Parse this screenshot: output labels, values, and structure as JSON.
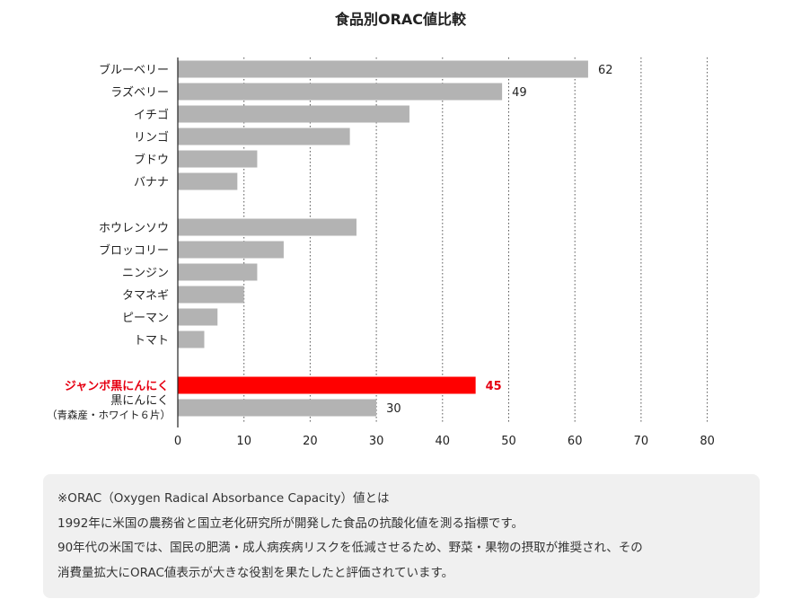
{
  "chart_data": {
    "type": "bar",
    "orientation": "horizontal",
    "title": "食品別ORAC値比較",
    "categories": [
      "ブルーベリー",
      "ラズベリー",
      "イチゴ",
      "リンゴ",
      "ブドウ",
      "バナナ",
      "ホウレンソウ",
      "ブロッコリー",
      "ニンジン",
      "タマネギ",
      "ピーマン",
      "トマト",
      "ジャンボ黒にんにく",
      "黒にんにく（青森産・ホワイト６片）"
    ],
    "category_lines": [
      [
        "ブルーベリー"
      ],
      [
        "ラズベリー"
      ],
      [
        "イチゴ"
      ],
      [
        "リンゴ"
      ],
      [
        "ブドウ"
      ],
      [
        "バナナ"
      ],
      [
        "ホウレンソウ"
      ],
      [
        "ブロッコリー"
      ],
      [
        "ニンジン"
      ],
      [
        "タマネギ"
      ],
      [
        "ピーマン"
      ],
      [
        "トマト"
      ],
      [
        "ジャンボ黒にんにく"
      ],
      [
        "黒にんにく",
        "（青森産・ホワイト６片）"
      ]
    ],
    "values": [
      62,
      49,
      35,
      26,
      12,
      9,
      27,
      16,
      12,
      10,
      6,
      4,
      45,
      30
    ],
    "data_labels": [
      "62",
      "49",
      "",
      "",
      "",
      "",
      "",
      "",
      "",
      "",
      "",
      "",
      "45",
      "30"
    ],
    "highlight_index": 12,
    "xlim": [
      0,
      80
    ],
    "x_ticks": [
      "0",
      "10",
      "20",
      "30",
      "40",
      "50",
      "60",
      "70",
      "80"
    ],
    "grid": "vertical-dotted",
    "colors": {
      "bar": "#b3b3b3",
      "highlight": "#ff0000",
      "highlight_label": "#e60012",
      "grid": "#555555",
      "axis": "#222222"
    }
  },
  "note": {
    "lines": [
      "※ORAC（Oxygen Radical Absorbance Capacity）値とは",
      "1992年に米国の農務省と国立老化研究所が開発した食品の抗酸化値を測る指標です。",
      "90年代の米国では、国民の肥満・成人病疾病リスクを低減させるため、野菜・果物の摂取が推奨され、その",
      "消費量拡大にORAC値表示が大きな役割を果たしたと評価されています。"
    ]
  }
}
